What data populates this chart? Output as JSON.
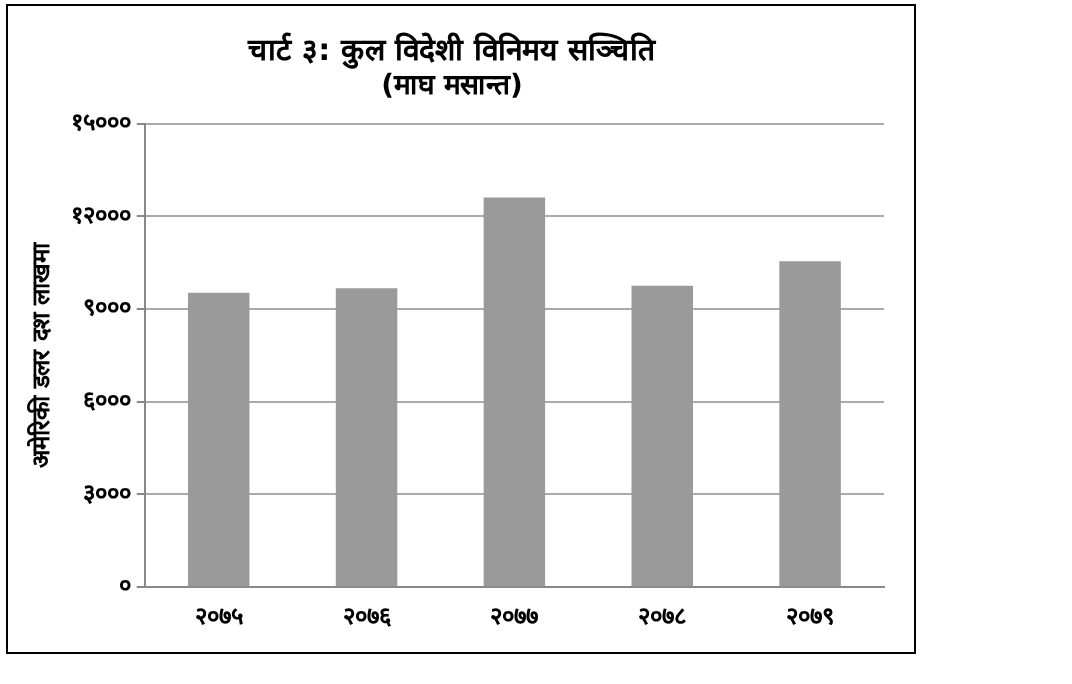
{
  "chart_data": {
    "type": "bar",
    "title": "चार्ट ३: कुल विदेशी विनिमय सञ्चिति",
    "subtitle": "(माघ मसान्त)",
    "ylabel": "अमेरिकी डलर दश लाखमा",
    "categories": [
      "२०७५",
      "२०७६",
      "२०७७",
      "२०७८",
      "२०७९"
    ],
    "values": [
      9530,
      9670,
      12610,
      9750,
      10550
    ],
    "color": "#9a9a9a",
    "ylim": [
      0,
      15000
    ],
    "yticks": [
      {
        "value": 0,
        "label": "०"
      },
      {
        "value": 3000,
        "label": "३०००"
      },
      {
        "value": 6000,
        "label": "६०००"
      },
      {
        "value": 9000,
        "label": "९०००"
      },
      {
        "value": 12000,
        "label": "१२०००"
      },
      {
        "value": 15000,
        "label": "१५०००"
      }
    ],
    "grid": "y"
  }
}
